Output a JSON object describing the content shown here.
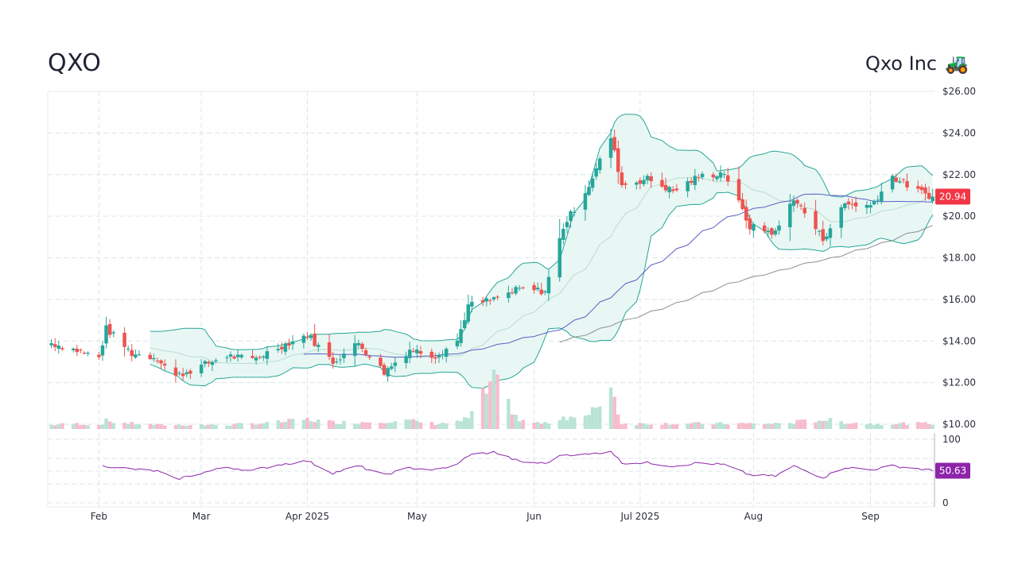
{
  "header": {
    "ticker": "QXO",
    "company": "Qxo Inc",
    "company_icon": "forklift-icon",
    "company_icon_glyph": "🚜"
  },
  "colors": {
    "up": "#26a69a",
    "down": "#ef5350",
    "band_fill": "#e6f6f2",
    "band_line": "#26a69a",
    "sma50": "#5b5fc7",
    "sma200": "#8e8e8e",
    "rsi": "#8e24aa",
    "price_tag": "#f23645",
    "rsi_tag": "#8e24aa",
    "grid": "#d9e6e9"
  },
  "chart_data": {
    "type": "candlestick",
    "price_axis": {
      "min": 10,
      "max": 26,
      "ticks": [
        "$10.00",
        "$12.00",
        "$14.00",
        "$16.00",
        "$18.00",
        "$20.00",
        "$22.00",
        "$24.00",
        "$26.00"
      ],
      "tick_values": [
        10,
        12,
        14,
        16,
        18,
        20,
        22,
        24,
        26
      ]
    },
    "rsi_axis": {
      "min": 0,
      "max": 100,
      "ticks": [
        "0",
        "100"
      ],
      "tick_values": [
        0,
        100
      ]
    },
    "x_labels": [
      {
        "label": "Feb",
        "date": "2025-02-03"
      },
      {
        "label": "Mar",
        "date": "2025-03-03"
      },
      {
        "label": "Apr 2025",
        "date": "2025-04-01"
      },
      {
        "label": "May",
        "date": "2025-05-01"
      },
      {
        "label": "Jun",
        "date": "2025-06-02"
      },
      {
        "label": "Jul 2025",
        "date": "2025-07-01"
      },
      {
        "label": "Aug",
        "date": "2025-08-01"
      },
      {
        "label": "Sep",
        "date": "2025-09-02"
      }
    ],
    "last_price": "20.94",
    "last_rsi": "50.63",
    "keypoints": [
      {
        "date": "2025-01-21",
        "close": 13.9,
        "vol": 0.3,
        "rsi": null
      },
      {
        "date": "2025-01-27",
        "close": 13.6,
        "vol": 0.4,
        "rsi": null
      },
      {
        "date": "2025-02-03",
        "close": 13.2,
        "vol": 0.3,
        "rsi": null
      },
      {
        "date": "2025-02-05",
        "close": 14.6,
        "vol": 0.6,
        "rsi": 58
      },
      {
        "date": "2025-02-12",
        "close": 13.4,
        "vol": 0.4,
        "rsi": 53
      },
      {
        "date": "2025-02-19",
        "close": 13.2,
        "vol": 0.3,
        "rsi": 50
      },
      {
        "date": "2025-02-24",
        "close": 12.3,
        "vol": 0.3,
        "rsi": 37
      },
      {
        "date": "2025-03-03",
        "close": 12.8,
        "vol": 0.3,
        "rsi": 47
      },
      {
        "date": "2025-03-10",
        "close": 13.3,
        "vol": 0.3,
        "rsi": 56
      },
      {
        "date": "2025-03-17",
        "close": 13.1,
        "vol": 0.4,
        "rsi": 51
      },
      {
        "date": "2025-03-24",
        "close": 13.7,
        "vol": 0.5,
        "rsi": 60
      },
      {
        "date": "2025-04-01",
        "close": 14.3,
        "vol": 0.7,
        "rsi": 66
      },
      {
        "date": "2025-04-08",
        "close": 13.0,
        "vol": 0.5,
        "rsi": 47
      },
      {
        "date": "2025-04-15",
        "close": 13.9,
        "vol": 0.5,
        "rsi": 58
      },
      {
        "date": "2025-04-22",
        "close": 12.5,
        "vol": 0.6,
        "rsi": 44
      },
      {
        "date": "2025-04-29",
        "close": 13.6,
        "vol": 0.6,
        "rsi": 55
      },
      {
        "date": "2025-05-06",
        "close": 13.3,
        "vol": 0.4,
        "rsi": 52
      },
      {
        "date": "2025-05-12",
        "close": 14.0,
        "vol": 0.5,
        "rsi": 60
      },
      {
        "date": "2025-05-15",
        "close": 15.7,
        "vol": 0.8,
        "rsi": 75
      },
      {
        "date": "2025-05-22",
        "close": 16.0,
        "vol": 3.5,
        "rsi": 80
      },
      {
        "date": "2025-05-29",
        "close": 16.5,
        "vol": 0.6,
        "rsi": 65
      },
      {
        "date": "2025-06-05",
        "close": 16.4,
        "vol": 0.4,
        "rsi": 62
      },
      {
        "date": "2025-06-10",
        "close": 19.5,
        "vol": 0.9,
        "rsi": 76
      },
      {
        "date": "2025-06-17",
        "close": 21.5,
        "vol": 0.9,
        "rsi": 76
      },
      {
        "date": "2025-06-23",
        "close": 23.8,
        "vol": 3.2,
        "rsi": 82
      },
      {
        "date": "2025-06-26",
        "close": 21.5,
        "vol": 0.4,
        "rsi": 63
      },
      {
        "date": "2025-07-03",
        "close": 21.8,
        "vol": 0.4,
        "rsi": 63
      },
      {
        "date": "2025-07-10",
        "close": 21.2,
        "vol": 0.4,
        "rsi": 58
      },
      {
        "date": "2025-07-17",
        "close": 21.9,
        "vol": 0.4,
        "rsi": 63
      },
      {
        "date": "2025-07-24",
        "close": 22.1,
        "vol": 0.4,
        "rsi": 60
      },
      {
        "date": "2025-07-31",
        "close": 19.5,
        "vol": 0.4,
        "rsi": 44
      },
      {
        "date": "2025-08-07",
        "close": 19.2,
        "vol": 0.4,
        "rsi": 42
      },
      {
        "date": "2025-08-12",
        "close": 20.9,
        "vol": 0.5,
        "rsi": 58
      },
      {
        "date": "2025-08-20",
        "close": 18.9,
        "vol": 0.7,
        "rsi": 40
      },
      {
        "date": "2025-08-26",
        "close": 20.6,
        "vol": 0.5,
        "rsi": 56
      },
      {
        "date": "2025-09-02",
        "close": 20.5,
        "vol": 0.4,
        "rsi": 52
      },
      {
        "date": "2025-09-08",
        "close": 21.9,
        "vol": 0.4,
        "rsi": 58
      },
      {
        "date": "2025-09-15",
        "close": 21.2,
        "vol": 0.4,
        "rsi": 54
      },
      {
        "date": "2025-09-19",
        "close": 20.94,
        "vol": 0.4,
        "rsi": 50.63
      }
    ]
  }
}
